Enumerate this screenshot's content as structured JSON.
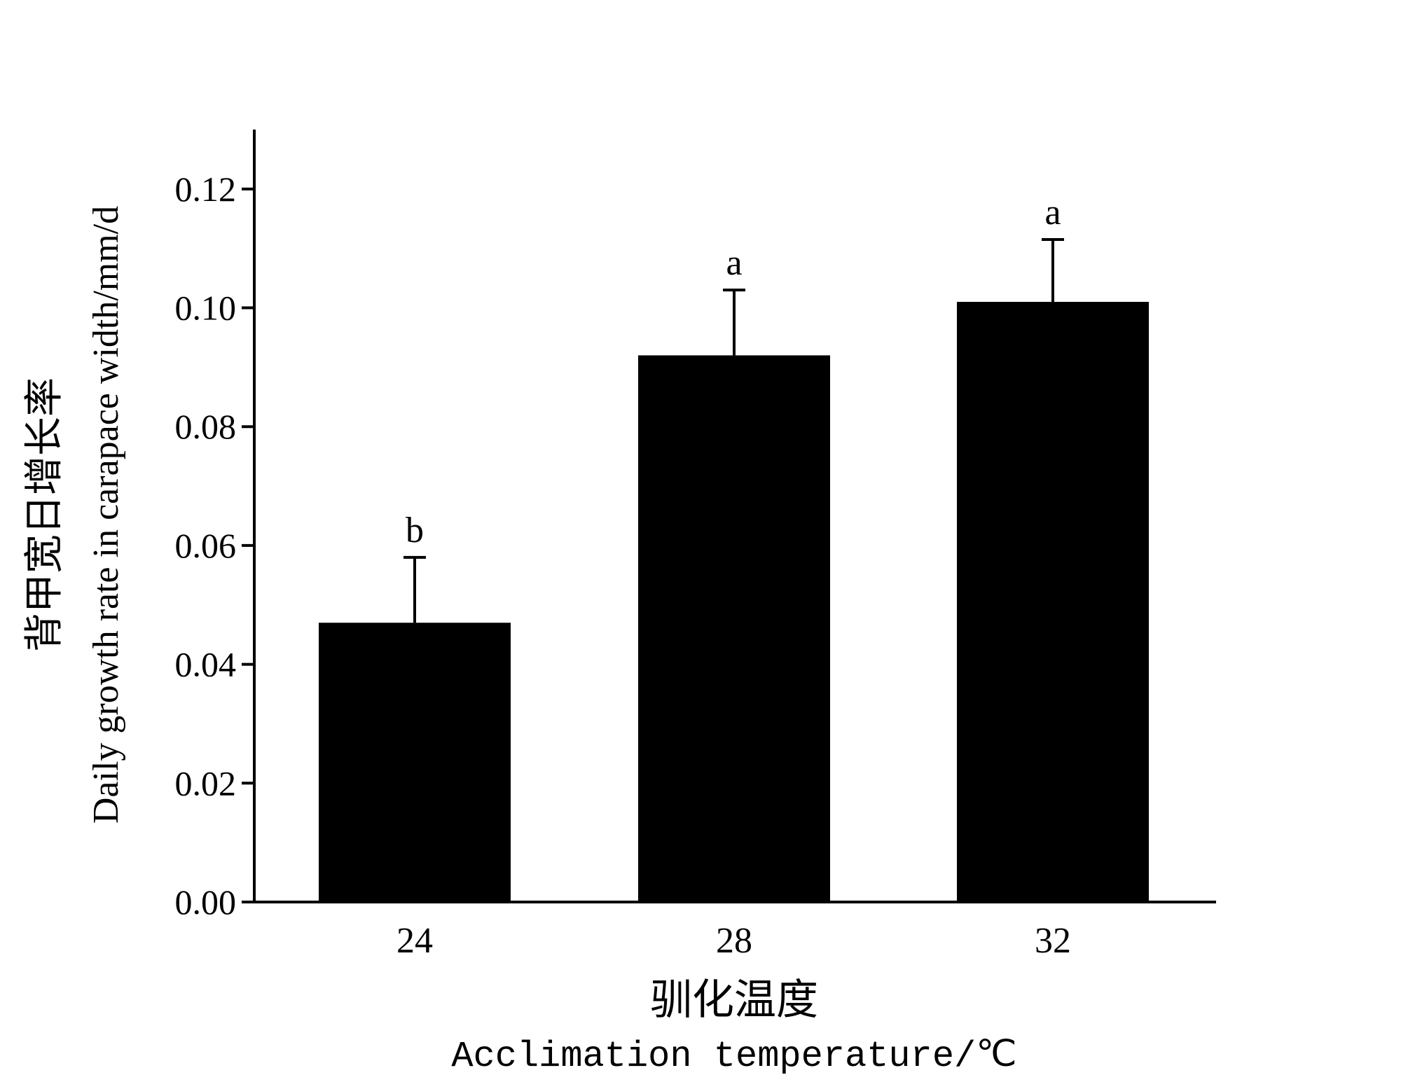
{
  "chart_data": {
    "type": "bar",
    "categories": [
      "24",
      "28",
      "32"
    ],
    "values": [
      0.047,
      0.092,
      0.101
    ],
    "errors": [
      0.011,
      0.011,
      0.0105
    ],
    "significance": [
      "b",
      "a",
      "a"
    ],
    "ylabel_zh": "背甲宽日增长率",
    "ylabel_en": "Daily growth rate in carapace width/mm/d",
    "xlabel_zh": "驯化温度",
    "xlabel_en": "Acclimation temperature/℃",
    "ylim": [
      0,
      0.13
    ],
    "yticks": [
      "0.00",
      "0.02",
      "0.04",
      "0.06",
      "0.08",
      "0.10",
      "0.12"
    ],
    "bar_color": "#000000",
    "grid": false,
    "legend": false
  }
}
